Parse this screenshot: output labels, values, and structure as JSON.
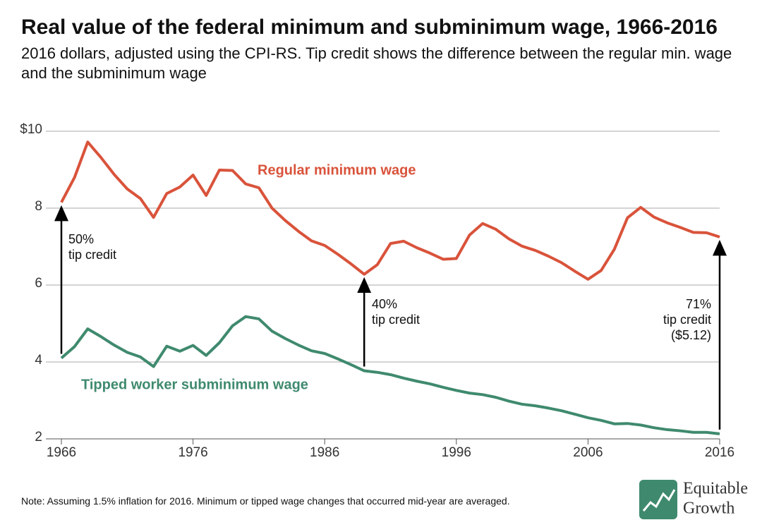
{
  "chart_data": {
    "type": "line",
    "title": "Real value of the federal minimum and subminimum wage, 1966-2016",
    "subtitle": "2016 dollars, adjusted using the CPI-RS. Tip credit shows the difference between the regular min. wage and the subminimum wage",
    "note": "Note: Assuming 1.5% inflation for 2016. Minimum or tipped wage changes that occurred mid-year are averaged.",
    "logo": [
      "Equitable",
      "Growth"
    ],
    "x": [
      1966,
      1967,
      1968,
      1969,
      1970,
      1971,
      1972,
      1973,
      1974,
      1975,
      1976,
      1977,
      1978,
      1979,
      1980,
      1981,
      1982,
      1983,
      1984,
      1985,
      1986,
      1987,
      1988,
      1989,
      1990,
      1991,
      1992,
      1993,
      1994,
      1995,
      1996,
      1997,
      1998,
      1999,
      2000,
      2001,
      2002,
      2003,
      2004,
      2005,
      2006,
      2007,
      2008,
      2009,
      2010,
      2011,
      2012,
      2013,
      2014,
      2015,
      2016
    ],
    "series": [
      {
        "name": "Regular minimum wage",
        "color": "#d9533b",
        "values": [
          8.15,
          8.8,
          9.72,
          9.32,
          8.88,
          8.5,
          8.25,
          7.76,
          8.38,
          8.55,
          8.86,
          8.33,
          8.99,
          8.98,
          8.63,
          8.53,
          8.0,
          7.68,
          7.4,
          7.15,
          7.03,
          6.8,
          6.55,
          6.28,
          6.53,
          7.08,
          7.14,
          6.97,
          6.83,
          6.67,
          6.69,
          7.3,
          7.6,
          7.45,
          7.2,
          7.01,
          6.9,
          6.75,
          6.58,
          6.36,
          6.15,
          6.38,
          6.93,
          7.75,
          8.02,
          7.77,
          7.62,
          7.5,
          7.37,
          7.36,
          7.25
        ]
      },
      {
        "name": "Tipped worker subminimum wage",
        "color": "#3f8a6e",
        "values": [
          4.1,
          4.4,
          4.86,
          4.66,
          4.44,
          4.25,
          4.13,
          3.88,
          4.41,
          4.28,
          4.43,
          4.17,
          4.5,
          4.94,
          5.18,
          5.12,
          4.8,
          4.61,
          4.44,
          4.29,
          4.22,
          4.08,
          3.93,
          3.77,
          3.73,
          3.67,
          3.58,
          3.5,
          3.43,
          3.34,
          3.26,
          3.19,
          3.15,
          3.08,
          2.98,
          2.9,
          2.86,
          2.8,
          2.73,
          2.64,
          2.55,
          2.48,
          2.39,
          2.4,
          2.36,
          2.29,
          2.24,
          2.21,
          2.17,
          2.17,
          2.13
        ]
      }
    ],
    "annotations": [
      [
        "50%",
        "tip credit"
      ],
      [
        "40%",
        "tip credit"
      ],
      [
        "71%",
        "tip credit",
        "($5.12)"
      ]
    ],
    "xlim": [
      1966,
      2016
    ],
    "xticks": [
      1966,
      1976,
      1986,
      1996,
      2006,
      2016
    ],
    "ylim": [
      2,
      10
    ],
    "yticks": [
      2,
      4,
      6,
      8,
      {
        "value": 10,
        "label": "$10"
      }
    ],
    "grid": true
  }
}
